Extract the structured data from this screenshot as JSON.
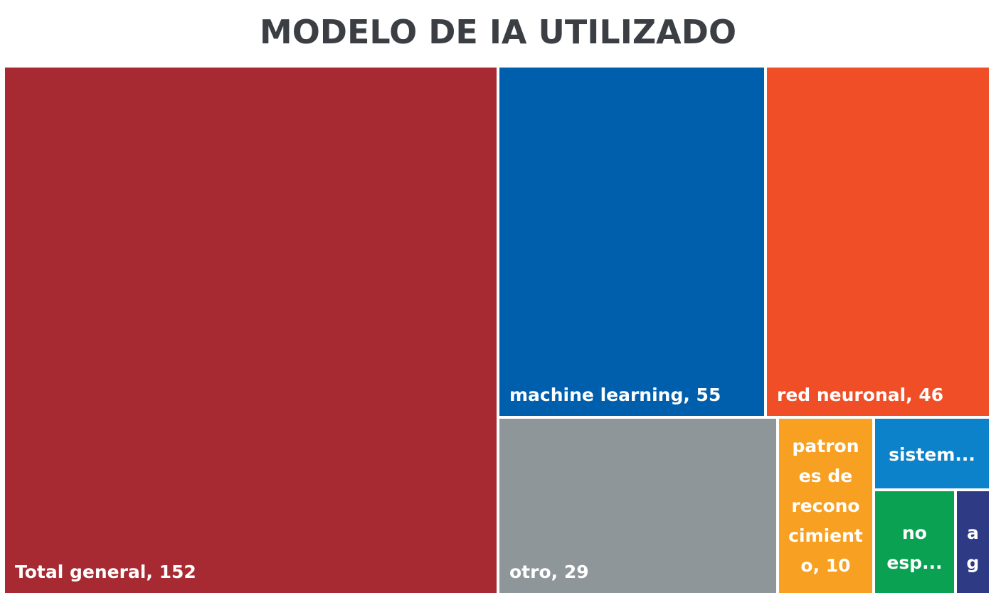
{
  "chart_data": {
    "type": "treemap",
    "title": "MODELO DE IA UTILIZADO",
    "items": [
      {
        "name": "Total general",
        "value": 152,
        "label": "Total general, 152",
        "color": "#a72a32"
      },
      {
        "name": "machine learning",
        "value": 55,
        "label": "machine learning, 55",
        "color": "#005fad"
      },
      {
        "name": "red neuronal",
        "value": 46,
        "label": "red neuronal, 46",
        "color": "#ef4e26"
      },
      {
        "name": "otro",
        "value": 29,
        "label": "otro, 29",
        "color": "#8f969a"
      },
      {
        "name": "patrones de reconocimiento",
        "value": 10,
        "label": "patrones de reconocimiento, 10",
        "color": "#f8a021"
      },
      {
        "name": "sistem...",
        "label": "sistem...",
        "color": "#0b82c9"
      },
      {
        "name": "no esp...",
        "label": "no esp...",
        "color": "#0ba152"
      },
      {
        "name": "a g",
        "label": "a g",
        "color": "#2e3b84"
      }
    ]
  }
}
